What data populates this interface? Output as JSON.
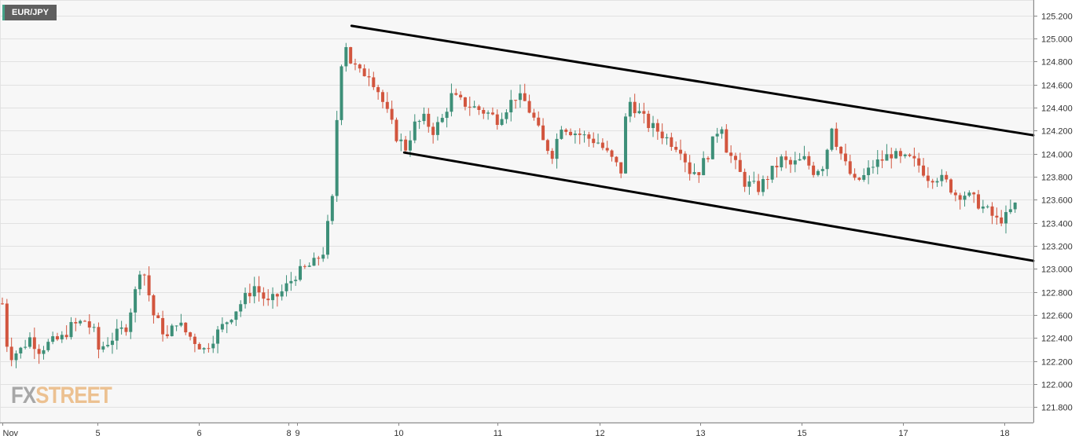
{
  "symbol": "EUR/JPY",
  "logo": {
    "fx": "FX",
    "street": "STREET"
  },
  "colors": {
    "bull": "#3d8f78",
    "bear": "#d2553e",
    "plot_bg": "#f7f7f7",
    "grid": "#e1e1e1",
    "trendline": "#000000",
    "accent": "#44a389"
  },
  "chart_data": {
    "type": "candlestick",
    "title": "EUR/JPY",
    "ylim": [
      121.7,
      125.3
    ],
    "y_ticks": [
      "125.200",
      "125.000",
      "124.800",
      "124.600",
      "124.400",
      "124.200",
      "124.000",
      "123.800",
      "123.600",
      "123.400",
      "123.200",
      "123.000",
      "122.800",
      "122.600",
      "122.400",
      "122.200",
      "122.000",
      "121.800"
    ],
    "x_labels": [
      {
        "label": "Nov",
        "t": 0
      },
      {
        "label": "5",
        "t": 20.8
      },
      {
        "label": "6",
        "t": 42.8
      },
      {
        "label": "8",
        "t": 62.4
      },
      {
        "label": "9",
        "t": 64.3
      },
      {
        "label": "10",
        "t": 86.4
      },
      {
        "label": "11",
        "t": 108.0
      },
      {
        "label": "12",
        "t": 130.3
      },
      {
        "label": "13",
        "t": 152.3
      },
      {
        "label": "15",
        "t": 174.4
      },
      {
        "label": "17",
        "t": 196.6
      },
      {
        "label": "18",
        "t": 218.6
      }
    ],
    "anchors": [
      [
        0,
        122.7
      ],
      [
        1,
        122.35
      ],
      [
        2,
        122.25
      ],
      [
        4,
        122.3
      ],
      [
        6,
        122.4
      ],
      [
        8,
        122.3
      ],
      [
        10,
        122.35
      ],
      [
        13,
        122.4
      ],
      [
        15,
        122.5
      ],
      [
        18,
        122.55
      ],
      [
        20,
        122.45
      ],
      [
        21,
        122.3
      ],
      [
        24,
        122.4
      ],
      [
        27,
        122.5
      ],
      [
        29,
        122.8
      ],
      [
        30,
        123.0
      ],
      [
        31,
        122.95
      ],
      [
        33,
        122.6
      ],
      [
        36,
        122.4
      ],
      [
        38,
        122.55
      ],
      [
        40,
        122.45
      ],
      [
        44,
        122.3
      ],
      [
        47,
        122.45
      ],
      [
        50,
        122.6
      ],
      [
        53,
        122.75
      ],
      [
        55,
        122.85
      ],
      [
        58,
        122.7
      ],
      [
        61,
        122.8
      ],
      [
        64,
        122.95
      ],
      [
        68,
        123.05
      ],
      [
        70,
        123.15
      ],
      [
        72,
        123.6
      ],
      [
        73,
        124.3
      ],
      [
        74,
        124.8
      ],
      [
        75,
        124.95
      ],
      [
        76,
        124.8
      ],
      [
        78,
        124.7
      ],
      [
        80,
        124.7
      ],
      [
        82,
        124.55
      ],
      [
        84,
        124.35
      ],
      [
        86,
        124.15
      ],
      [
        88,
        124.05
      ],
      [
        90,
        124.25
      ],
      [
        92,
        124.3
      ],
      [
        94,
        124.2
      ],
      [
        96,
        124.3
      ],
      [
        98,
        124.5
      ],
      [
        100,
        124.45
      ],
      [
        103,
        124.4
      ],
      [
        106,
        124.35
      ],
      [
        108,
        124.3
      ],
      [
        110,
        124.4
      ],
      [
        112,
        124.5
      ],
      [
        114,
        124.45
      ],
      [
        116,
        124.3
      ],
      [
        118,
        124.1
      ],
      [
        120,
        124.0
      ],
      [
        122,
        124.25
      ],
      [
        124,
        124.2
      ],
      [
        127,
        124.15
      ],
      [
        130,
        124.1
      ],
      [
        132,
        124.0
      ],
      [
        135,
        123.85
      ],
      [
        136,
        124.3
      ],
      [
        137,
        124.45
      ],
      [
        139,
        124.35
      ],
      [
        141,
        124.25
      ],
      [
        143,
        124.2
      ],
      [
        146,
        124.1
      ],
      [
        148,
        124.05
      ],
      [
        150,
        123.85
      ],
      [
        152,
        123.85
      ],
      [
        154,
        124.0
      ],
      [
        156,
        124.2
      ],
      [
        157,
        124.25
      ],
      [
        158,
        124.05
      ],
      [
        160,
        123.9
      ],
      [
        162,
        123.75
      ],
      [
        165,
        123.7
      ],
      [
        168,
        123.85
      ],
      [
        170,
        123.95
      ],
      [
        172,
        123.9
      ],
      [
        175,
        123.95
      ],
      [
        177,
        123.85
      ],
      [
        179,
        123.9
      ],
      [
        180,
        124.05
      ],
      [
        181,
        124.25
      ],
      [
        182,
        124.1
      ],
      [
        184,
        123.9
      ],
      [
        186,
        123.75
      ],
      [
        188,
        123.8
      ],
      [
        190,
        123.9
      ],
      [
        192,
        123.95
      ],
      [
        194,
        124.0
      ],
      [
        196,
        123.95
      ],
      [
        198,
        123.95
      ],
      [
        200,
        123.9
      ],
      [
        202,
        123.8
      ],
      [
        204,
        123.8
      ],
      [
        206,
        123.75
      ],
      [
        208,
        123.65
      ],
      [
        210,
        123.65
      ],
      [
        212,
        123.6
      ],
      [
        215,
        123.5
      ],
      [
        217,
        123.42
      ],
      [
        219,
        123.45
      ],
      [
        221,
        123.55
      ]
    ],
    "trendlines": [
      {
        "name": "upper",
        "x0": 76.2,
        "y0": 125.11,
        "x1": 225,
        "y1": 124.16
      },
      {
        "name": "lower",
        "x0": 87.7,
        "y0": 124.01,
        "x1": 225,
        "y1": 123.07
      }
    ]
  }
}
